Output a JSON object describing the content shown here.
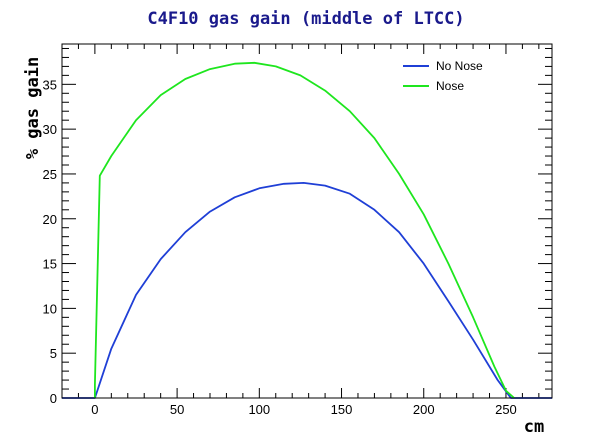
{
  "chart_data": {
    "type": "line",
    "title": "C4F10 gas gain (middle of LTCC)",
    "xlabel": "cm",
    "ylabel": "% gas gain",
    "xlim": [
      -20,
      278
    ],
    "ylim": [
      0,
      39.5
    ],
    "x_ticks": [
      0,
      50,
      100,
      150,
      200,
      250
    ],
    "y_ticks": [
      0,
      5,
      10,
      15,
      20,
      25,
      30,
      35
    ],
    "legend_position": "top-right",
    "series": [
      {
        "name": "No Nose",
        "color": "#1f3fd6",
        "points": [
          [
            -20,
            0
          ],
          [
            0,
            0
          ],
          [
            10,
            5.5
          ],
          [
            25,
            11.5
          ],
          [
            40,
            15.5
          ],
          [
            55,
            18.5
          ],
          [
            70,
            20.8
          ],
          [
            85,
            22.4
          ],
          [
            100,
            23.4
          ],
          [
            115,
            23.9
          ],
          [
            127,
            24.0
          ],
          [
            140,
            23.7
          ],
          [
            155,
            22.8
          ],
          [
            170,
            21.0
          ],
          [
            185,
            18.5
          ],
          [
            200,
            15.0
          ],
          [
            215,
            10.8
          ],
          [
            230,
            6.5
          ],
          [
            245,
            2.0
          ],
          [
            253,
            0
          ],
          [
            278,
            0
          ]
        ]
      },
      {
        "name": "Nose",
        "color": "#1ee61e",
        "points": [
          [
            0,
            0
          ],
          [
            0,
            1.5
          ],
          [
            3,
            24.8
          ],
          [
            10,
            27.0
          ],
          [
            25,
            31.0
          ],
          [
            40,
            33.8
          ],
          [
            55,
            35.6
          ],
          [
            70,
            36.7
          ],
          [
            85,
            37.3
          ],
          [
            97,
            37.4
          ],
          [
            110,
            37.0
          ],
          [
            125,
            36.0
          ],
          [
            140,
            34.3
          ],
          [
            155,
            32.0
          ],
          [
            170,
            29.0
          ],
          [
            185,
            25.0
          ],
          [
            200,
            20.5
          ],
          [
            215,
            15.0
          ],
          [
            230,
            9.0
          ],
          [
            243,
            3.5
          ],
          [
            250,
            0.8
          ],
          [
            255,
            0
          ]
        ]
      }
    ]
  }
}
